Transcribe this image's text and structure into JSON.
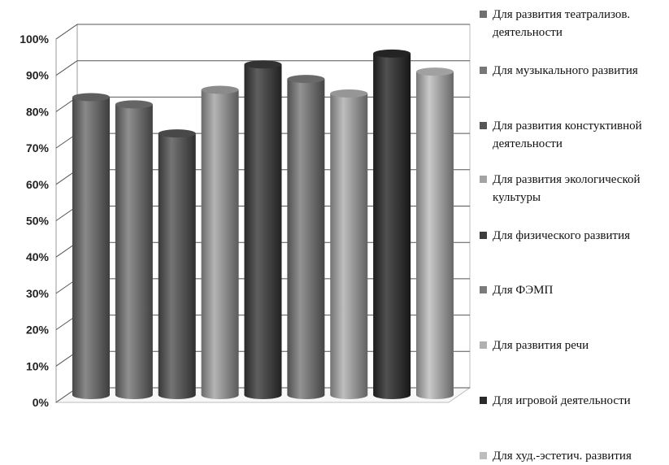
{
  "chart_data": {
    "type": "bar",
    "categories": [
      "Для развития театрализов. деятельности",
      "Для музыкального развития",
      "Для развития констуктивной деятельности",
      "Для развития экологической культуры",
      "Для физического развития",
      "Для ФЭМП",
      "Для развития речи",
      "Для игровой деятельности",
      "Для худ.-эстетич.  развития"
    ],
    "values": [
      82,
      80,
      72,
      84,
      91,
      87,
      83,
      94,
      89
    ],
    "colors": [
      "#6f6f6f",
      "#777777",
      "#555555",
      "#a3a3a3",
      "#3c3c3c",
      "#7b7b7b",
      "#b0b0b0",
      "#2a2a2a",
      "#bdbdbd"
    ],
    "y_ticks": [
      "0%",
      "10%",
      "20%",
      "30%",
      "40%",
      "50%",
      "60%",
      "70%",
      "80%",
      "90%",
      "100%"
    ],
    "ylim": [
      0,
      100
    ],
    "grid": true,
    "legend": "right",
    "style": "3d-cylinder"
  }
}
